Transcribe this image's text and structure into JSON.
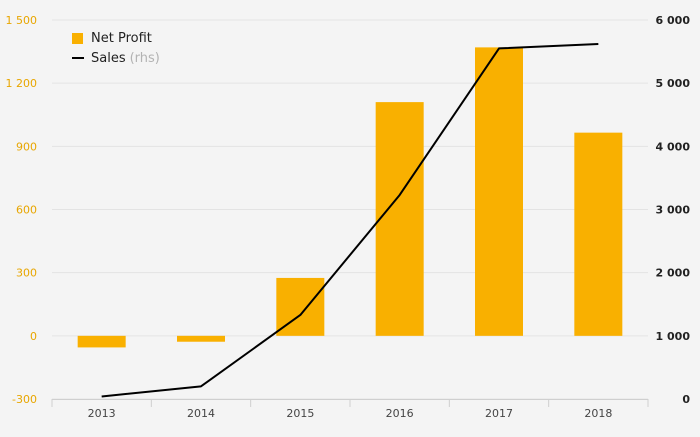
{
  "colors": {
    "bar": "#f9b000",
    "line": "#000000",
    "left_axis_text": "#e8a600",
    "right_axis_text": "#222222",
    "x_axis_text": "#444444",
    "grid": "#e3e3e3",
    "background": "#f4f4f4"
  },
  "legend": {
    "position": "top-left",
    "bar_label": "Net Profit",
    "line_label": "Sales",
    "line_note": "(rhs)"
  },
  "chart_data": {
    "type": "bar",
    "categories": [
      "2013",
      "2014",
      "2015",
      "2016",
      "2017",
      "2018"
    ],
    "series": [
      {
        "name": "Net Profit",
        "type": "bar",
        "axis": "left",
        "values": [
          -55,
          -28,
          275,
          1110,
          1370,
          965
        ]
      },
      {
        "name": "Sales",
        "type": "line",
        "axis": "right",
        "values": [
          40,
          200,
          1330,
          3230,
          5550,
          5620
        ]
      }
    ],
    "left_axis": {
      "range": [
        -300,
        1500
      ],
      "ticks": [
        -300,
        0,
        300,
        600,
        900,
        1200,
        1500
      ],
      "tick_labels": [
        "-300",
        "0",
        "300",
        "600",
        "900",
        "1 200",
        "1 500"
      ]
    },
    "right_axis": {
      "range": [
        0,
        6000
      ],
      "ticks": [
        0,
        1000,
        2000,
        3000,
        4000,
        5000,
        6000
      ],
      "tick_labels": [
        "0",
        "1 000",
        "2 000",
        "3 000",
        "4 000",
        "5 000",
        "6 000"
      ]
    },
    "grid": true
  }
}
